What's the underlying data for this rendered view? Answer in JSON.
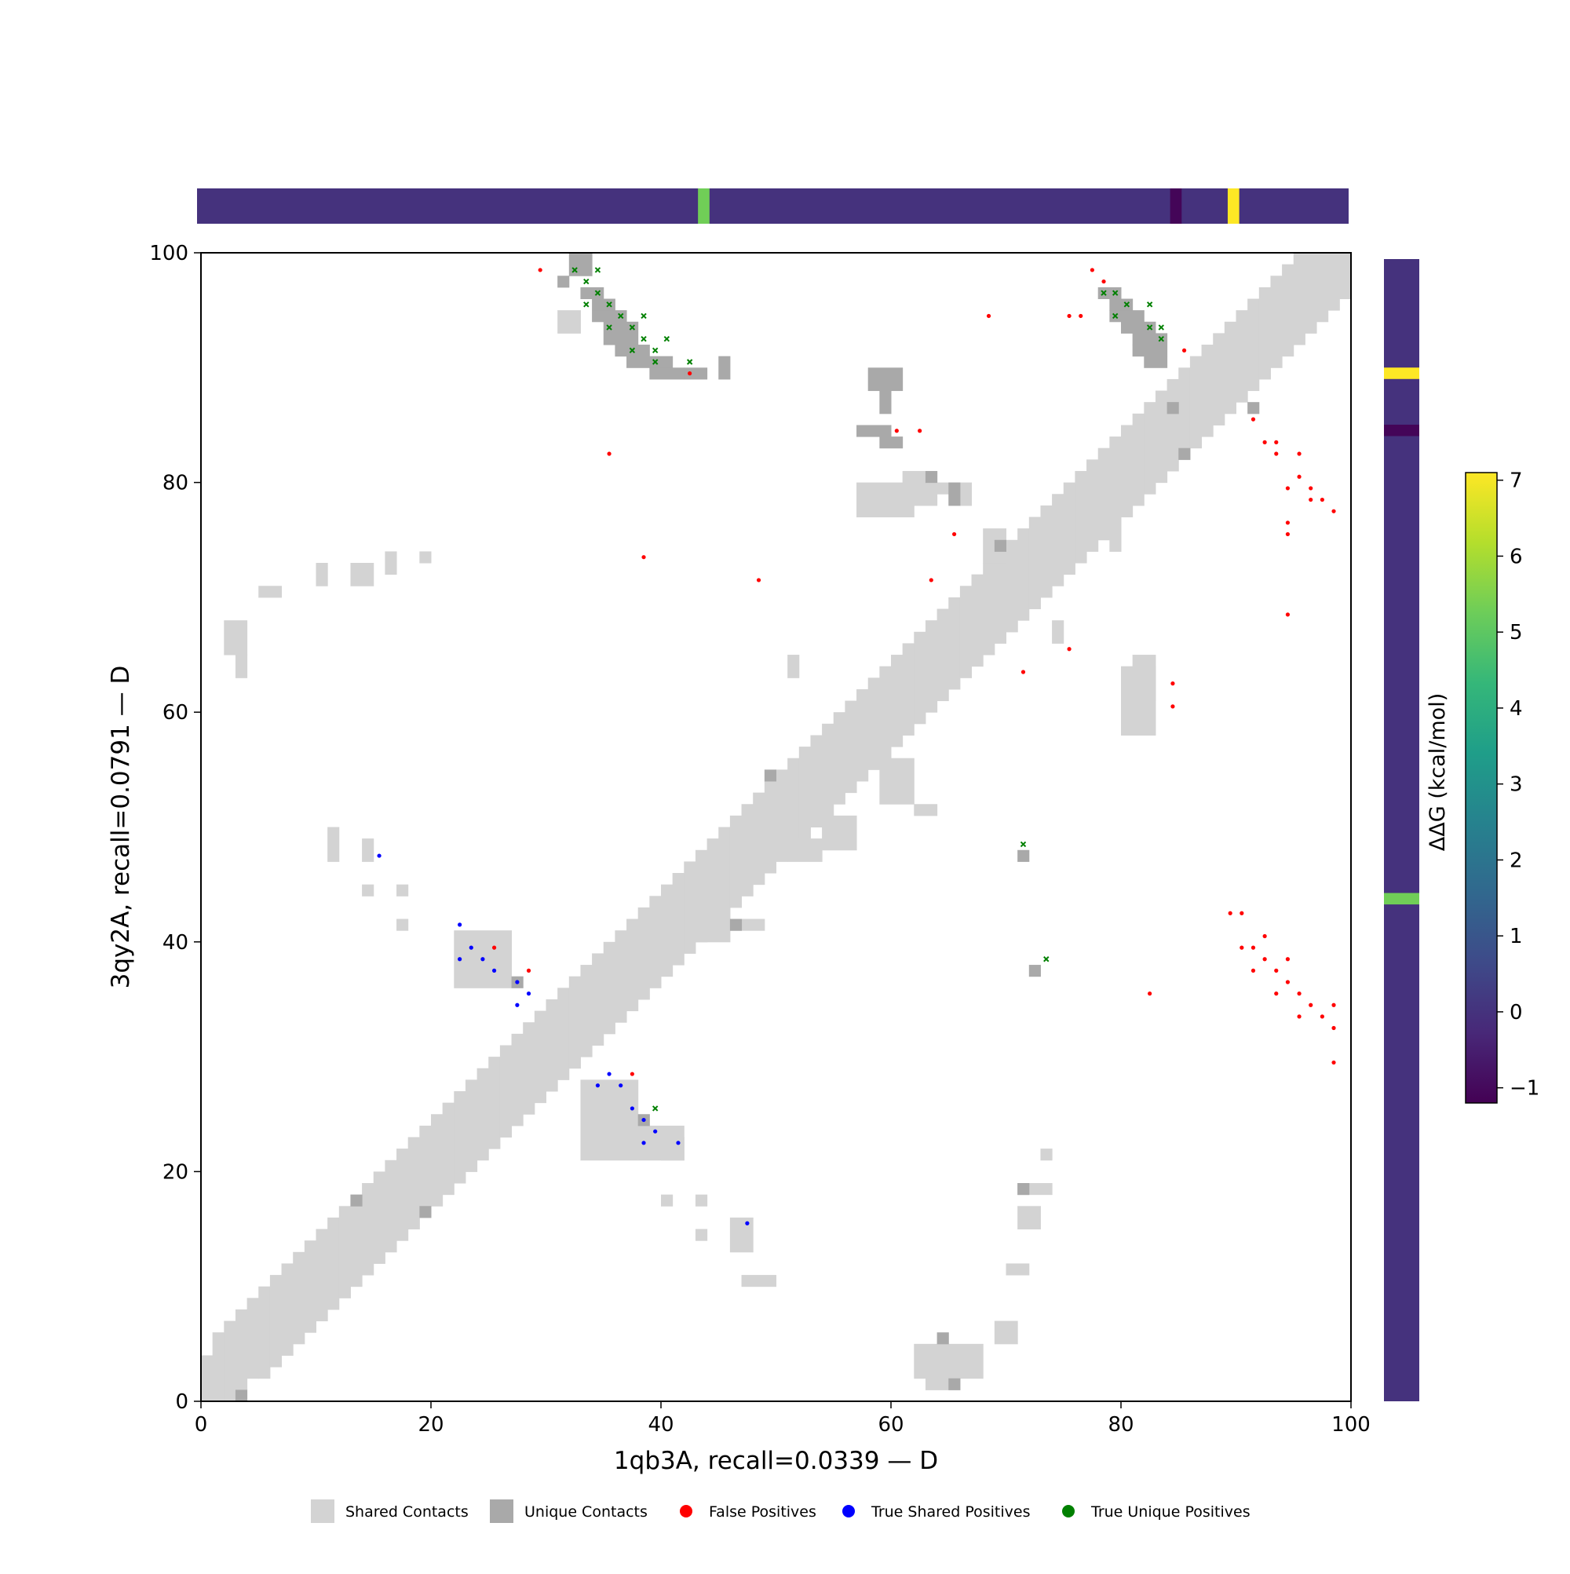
{
  "chart_data": {
    "type": "heatmap",
    "xlabel": "1qb3A, recall=0.0339 — D",
    "ylabel": "3qy2A, recall=0.0791 — D",
    "xlim": [
      0,
      100
    ],
    "ylim": [
      0,
      100
    ],
    "xticks": [
      "0",
      "20",
      "40",
      "60",
      "80",
      "100"
    ],
    "yticks": [
      "0",
      "20",
      "40",
      "60",
      "80",
      "100"
    ],
    "grid": false,
    "legend_position": "bottom",
    "legend": [
      {
        "label": "Shared Contacts",
        "marker": "square",
        "color": "#d3d3d3"
      },
      {
        "label": "Unique Contacts",
        "marker": "square",
        "color": "#a9a9a9"
      },
      {
        "label": "False Positives",
        "marker": "circle",
        "color": "#ff0000"
      },
      {
        "label": "True Shared Positives",
        "marker": "circle",
        "color": "#0000ff"
      },
      {
        "label": "True Unique Positives",
        "marker": "circle",
        "color": "#008000"
      }
    ],
    "colorbar": {
      "label": "ΔΔG (kcal/mol)",
      "min": -1.2,
      "max": 7.1,
      "ticks": [
        "−1",
        "0",
        "1",
        "2",
        "3",
        "4",
        "5",
        "6",
        "7"
      ],
      "tick_values": [
        -1,
        0,
        1,
        2,
        3,
        4,
        5,
        6,
        7
      ],
      "colormap": "viridis"
    },
    "ddg_track": {
      "baseline": 0,
      "highlights": [
        {
          "residue": 44,
          "value": 5.3
        },
        {
          "residue": 85,
          "value": -1.1
        },
        {
          "residue": 90,
          "value": 7.1
        }
      ]
    },
    "shared_band": {
      "description_points": [
        [
          0,
          0
        ],
        [
          100,
          100
        ]
      ],
      "rows": [
        [
          0,
          0,
          4
        ],
        [
          1,
          0,
          6
        ],
        [
          2,
          0,
          7
        ],
        [
          3,
          1,
          8
        ],
        [
          4,
          2,
          9
        ],
        [
          5,
          2,
          10
        ],
        [
          6,
          3,
          11
        ],
        [
          7,
          4,
          12
        ],
        [
          8,
          5,
          13
        ],
        [
          9,
          6,
          14
        ],
        [
          10,
          7,
          15
        ],
        [
          11,
          8,
          16
        ],
        [
          12,
          9,
          17
        ],
        [
          13,
          10,
          18
        ],
        [
          14,
          11,
          19
        ],
        [
          15,
          12,
          20
        ],
        [
          16,
          13,
          21
        ],
        [
          17,
          14,
          22
        ],
        [
          18,
          15,
          23
        ],
        [
          19,
          16,
          24
        ],
        [
          20,
          17,
          25
        ],
        [
          21,
          18,
          26
        ],
        [
          22,
          19,
          27
        ],
        [
          23,
          20,
          28
        ],
        [
          24,
          21,
          29
        ],
        [
          25,
          22,
          30
        ],
        [
          26,
          23,
          31
        ],
        [
          27,
          24,
          32
        ],
        [
          28,
          25,
          33
        ],
        [
          29,
          26,
          34
        ],
        [
          30,
          27,
          35
        ],
        [
          31,
          28,
          36
        ],
        [
          32,
          29,
          37
        ],
        [
          33,
          30,
          38
        ],
        [
          34,
          31,
          39
        ],
        [
          35,
          32,
          40
        ],
        [
          36,
          33,
          41
        ],
        [
          37,
          34,
          42
        ],
        [
          38,
          35,
          43
        ],
        [
          39,
          36,
          44
        ],
        [
          40,
          37,
          45
        ],
        [
          41,
          38,
          46
        ],
        [
          42,
          39,
          47
        ],
        [
          43,
          40,
          48
        ],
        [
          44,
          41,
          49
        ],
        [
          45,
          42,
          50
        ],
        [
          46,
          43,
          51
        ],
        [
          47,
          44,
          52
        ],
        [
          48,
          45,
          53
        ],
        [
          49,
          46,
          54
        ],
        [
          50,
          47,
          55
        ],
        [
          51,
          48,
          56
        ],
        [
          52,
          49,
          57
        ],
        [
          53,
          50,
          58
        ],
        [
          54,
          51,
          59
        ],
        [
          55,
          52,
          60
        ],
        [
          56,
          53,
          61
        ],
        [
          57,
          54,
          62
        ],
        [
          58,
          55,
          63
        ],
        [
          59,
          56,
          64
        ],
        [
          60,
          57,
          65
        ],
        [
          61,
          58,
          66
        ],
        [
          62,
          59,
          67
        ],
        [
          63,
          60,
          68
        ],
        [
          64,
          61,
          69
        ],
        [
          65,
          62,
          70
        ],
        [
          66,
          63,
          71
        ],
        [
          67,
          64,
          72
        ],
        [
          68,
          65,
          73
        ],
        [
          69,
          66,
          74
        ],
        [
          70,
          67,
          75
        ],
        [
          71,
          68,
          76
        ],
        [
          72,
          69,
          77
        ],
        [
          73,
          70,
          78
        ],
        [
          74,
          71,
          79
        ],
        [
          75,
          72,
          80
        ],
        [
          76,
          73,
          81
        ],
        [
          77,
          74,
          82
        ],
        [
          78,
          75,
          83
        ],
        [
          79,
          76,
          84
        ],
        [
          80,
          77,
          85
        ],
        [
          81,
          78,
          86
        ],
        [
          82,
          79,
          87
        ],
        [
          83,
          80,
          88
        ],
        [
          84,
          81,
          89
        ],
        [
          85,
          82,
          90
        ],
        [
          86,
          83,
          91
        ],
        [
          87,
          84,
          92
        ],
        [
          88,
          85,
          93
        ],
        [
          89,
          86,
          94
        ],
        [
          90,
          87,
          95
        ],
        [
          91,
          88,
          96
        ],
        [
          92,
          89,
          97
        ],
        [
          93,
          90,
          98
        ],
        [
          94,
          91,
          99
        ],
        [
          95,
          92,
          100
        ],
        [
          96,
          93,
          100
        ],
        [
          97,
          94,
          100
        ],
        [
          98,
          95,
          100
        ],
        [
          99,
          96,
          100
        ]
      ]
    },
    "shared_blocks": [
      [
        31,
        93,
        2,
        2
      ],
      [
        2,
        65,
        2,
        3
      ],
      [
        3,
        63,
        1,
        2
      ],
      [
        5,
        70,
        2,
        1
      ],
      [
        10,
        71,
        1,
        2
      ],
      [
        13,
        71,
        2,
        2
      ],
      [
        16,
        72,
        1,
        2
      ],
      [
        19,
        73,
        1,
        1
      ],
      [
        11,
        47,
        1,
        3
      ],
      [
        14,
        47,
        1,
        2
      ],
      [
        14,
        44,
        1,
        1
      ],
      [
        17,
        44,
        1,
        1
      ],
      [
        17,
        41,
        1,
        1
      ],
      [
        22,
        36,
        5,
        5
      ],
      [
        33,
        21,
        5,
        7
      ],
      [
        38,
        21,
        4,
        3
      ],
      [
        40,
        21,
        2,
        2
      ],
      [
        40,
        17,
        1,
        1
      ],
      [
        43,
        17,
        1,
        1
      ],
      [
        43,
        14,
        1,
        1
      ],
      [
        46,
        13,
        2,
        3
      ],
      [
        47,
        10,
        3,
        1
      ],
      [
        62,
        2,
        6,
        3
      ],
      [
        63,
        1,
        3,
        2
      ],
      [
        69,
        5,
        2,
        2
      ],
      [
        71,
        15,
        2,
        2
      ],
      [
        70,
        11,
        2,
        1
      ],
      [
        71,
        18,
        3,
        1
      ],
      [
        73,
        21,
        1,
        1
      ],
      [
        57,
        77,
        5,
        3
      ],
      [
        61,
        78,
        3,
        3
      ],
      [
        63,
        79,
        3,
        1
      ],
      [
        66,
        78,
        1,
        2
      ],
      [
        68,
        73,
        2,
        3
      ],
      [
        80,
        58,
        3,
        6
      ],
      [
        81,
        61,
        2,
        4
      ],
      [
        51,
        47,
        3,
        2
      ],
      [
        54,
        48,
        3,
        3
      ],
      [
        59,
        52,
        3,
        4
      ],
      [
        62,
        51,
        2,
        1
      ],
      [
        46,
        41,
        3,
        1
      ],
      [
        42,
        40,
        4,
        3
      ],
      [
        51,
        63,
        1,
        2
      ],
      [
        68,
        67,
        3,
        3
      ],
      [
        74,
        66,
        1,
        2
      ],
      [
        76,
        76,
        3,
        1
      ],
      [
        79,
        74,
        1,
        3
      ]
    ],
    "unique_blocks": [
      [
        31,
        97,
        1,
        1
      ],
      [
        32,
        98,
        2,
        2
      ],
      [
        33,
        96,
        2,
        1
      ],
      [
        34,
        95,
        2,
        1
      ],
      [
        34,
        94,
        3,
        1
      ],
      [
        35,
        92,
        3,
        2
      ],
      [
        36,
        91,
        3,
        1
      ],
      [
        37,
        90,
        4,
        1
      ],
      [
        39,
        89,
        3,
        1
      ],
      [
        42,
        89,
        2,
        1
      ],
      [
        45,
        89,
        1,
        2
      ],
      [
        58,
        88,
        3,
        2
      ],
      [
        59,
        86,
        1,
        3
      ],
      [
        57,
        84,
        3,
        1
      ],
      [
        59,
        83,
        2,
        1
      ],
      [
        63,
        80,
        1,
        1
      ],
      [
        65,
        78,
        1,
        2
      ],
      [
        69,
        74,
        1,
        1
      ],
      [
        78,
        96,
        2,
        1
      ],
      [
        79,
        95,
        2,
        1
      ],
      [
        79,
        94,
        3,
        1
      ],
      [
        80,
        93,
        3,
        1
      ],
      [
        81,
        92,
        3,
        1
      ],
      [
        81,
        91,
        3,
        1
      ],
      [
        82,
        90,
        2,
        1
      ],
      [
        84,
        86,
        1,
        1
      ],
      [
        85,
        82,
        1,
        1
      ],
      [
        91,
        86,
        1,
        1
      ],
      [
        71,
        47,
        1,
        1
      ],
      [
        72,
        37,
        1,
        1
      ],
      [
        27,
        36,
        1,
        1
      ],
      [
        38,
        24,
        1,
        1
      ],
      [
        13,
        17,
        1,
        1
      ],
      [
        19,
        16,
        1,
        1
      ],
      [
        46,
        41,
        1,
        1
      ],
      [
        49,
        54,
        1,
        1
      ],
      [
        3,
        0,
        1,
        1
      ],
      [
        65,
        1,
        1,
        1
      ],
      [
        64,
        5,
        1,
        1
      ],
      [
        71,
        18,
        1,
        1
      ]
    ],
    "false_positives": [
      [
        29,
        98
      ],
      [
        42,
        89
      ],
      [
        35,
        82
      ],
      [
        38,
        73
      ],
      [
        48,
        71
      ],
      [
        63,
        71
      ],
      [
        65,
        75
      ],
      [
        68,
        94
      ],
      [
        75,
        94
      ],
      [
        76,
        94
      ],
      [
        77,
        98
      ],
      [
        78,
        97
      ],
      [
        60,
        84
      ],
      [
        62,
        84
      ],
      [
        85,
        91
      ],
      [
        91,
        85
      ],
      [
        92,
        83
      ],
      [
        93,
        83
      ],
      [
        93,
        82
      ],
      [
        95,
        82
      ],
      [
        95,
        80
      ],
      [
        94,
        79
      ],
      [
        96,
        79
      ],
      [
        96,
        78
      ],
      [
        97,
        78
      ],
      [
        98,
        77
      ],
      [
        94,
        76
      ],
      [
        94,
        75
      ],
      [
        94,
        68
      ],
      [
        75,
        65
      ],
      [
        71,
        63
      ],
      [
        84,
        62
      ],
      [
        84,
        60
      ],
      [
        25,
        39
      ],
      [
        28,
        37
      ],
      [
        37,
        28
      ],
      [
        89,
        42
      ],
      [
        90,
        42
      ],
      [
        92,
        40
      ],
      [
        90,
        39
      ],
      [
        91,
        39
      ],
      [
        92,
        38
      ],
      [
        94,
        38
      ],
      [
        91,
        37
      ],
      [
        93,
        37
      ],
      [
        94,
        36
      ],
      [
        93,
        35
      ],
      [
        95,
        35
      ],
      [
        82,
        35
      ],
      [
        96,
        34
      ],
      [
        98,
        34
      ],
      [
        95,
        33
      ],
      [
        97,
        33
      ],
      [
        98,
        32
      ],
      [
        98,
        29
      ]
    ],
    "true_shared_positives": [
      [
        15,
        47
      ],
      [
        22,
        41
      ],
      [
        22,
        38
      ],
      [
        23,
        39
      ],
      [
        24,
        38
      ],
      [
        25,
        37
      ],
      [
        27,
        36
      ],
      [
        28,
        35
      ],
      [
        27,
        34
      ],
      [
        34,
        27
      ],
      [
        35,
        28
      ],
      [
        36,
        27
      ],
      [
        37,
        25
      ],
      [
        38,
        24
      ],
      [
        39,
        23
      ],
      [
        38,
        22
      ],
      [
        41,
        22
      ],
      [
        47,
        15
      ]
    ],
    "true_unique_positives": [
      [
        32,
        98
      ],
      [
        34,
        98
      ],
      [
        33,
        97
      ],
      [
        34,
        96
      ],
      [
        33,
        95
      ],
      [
        35,
        95
      ],
      [
        36,
        94
      ],
      [
        38,
        94
      ],
      [
        35,
        93
      ],
      [
        37,
        93
      ],
      [
        38,
        92
      ],
      [
        40,
        92
      ],
      [
        37,
        91
      ],
      [
        39,
        91
      ],
      [
        39,
        90
      ],
      [
        42,
        90
      ],
      [
        78,
        96
      ],
      [
        79,
        96
      ],
      [
        80,
        95
      ],
      [
        82,
        95
      ],
      [
        79,
        94
      ],
      [
        82,
        93
      ],
      [
        83,
        93
      ],
      [
        83,
        92
      ],
      [
        71,
        48
      ],
      [
        73,
        38
      ],
      [
        39,
        25
      ]
    ]
  }
}
